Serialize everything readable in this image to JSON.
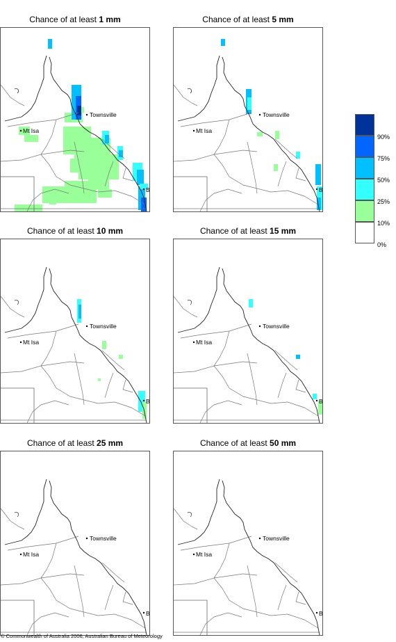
{
  "panels": [
    {
      "title_prefix": "Chance of at least",
      "amount": "1 mm",
      "coverage": 5
    },
    {
      "title_prefix": "Chance of at least",
      "amount": "5 mm",
      "coverage": 3
    },
    {
      "title_prefix": "Chance of at least",
      "amount": "10 mm",
      "coverage": 2
    },
    {
      "title_prefix": "Chance of at least",
      "amount": "15 mm",
      "coverage": 1
    },
    {
      "title_prefix": "Chance of at least",
      "amount": "25 mm",
      "coverage": 0
    },
    {
      "title_prefix": "Chance of at least",
      "amount": "50 mm",
      "coverage": 0
    }
  ],
  "places": {
    "townsville": "Townsville",
    "mt_isa": "Mt Isa",
    "bris": "BRIS"
  },
  "legend": {
    "colors": [
      "#00339a",
      "#0066ff",
      "#00c0ff",
      "#33ffff",
      "#99ff99",
      "#ffffff"
    ],
    "labels": [
      "90%",
      "75%",
      "50%",
      "25%",
      "10%",
      "0%"
    ]
  },
  "copyright": "© Commonwealth of Australia 2006, Australian Bureau of Meteorology"
}
